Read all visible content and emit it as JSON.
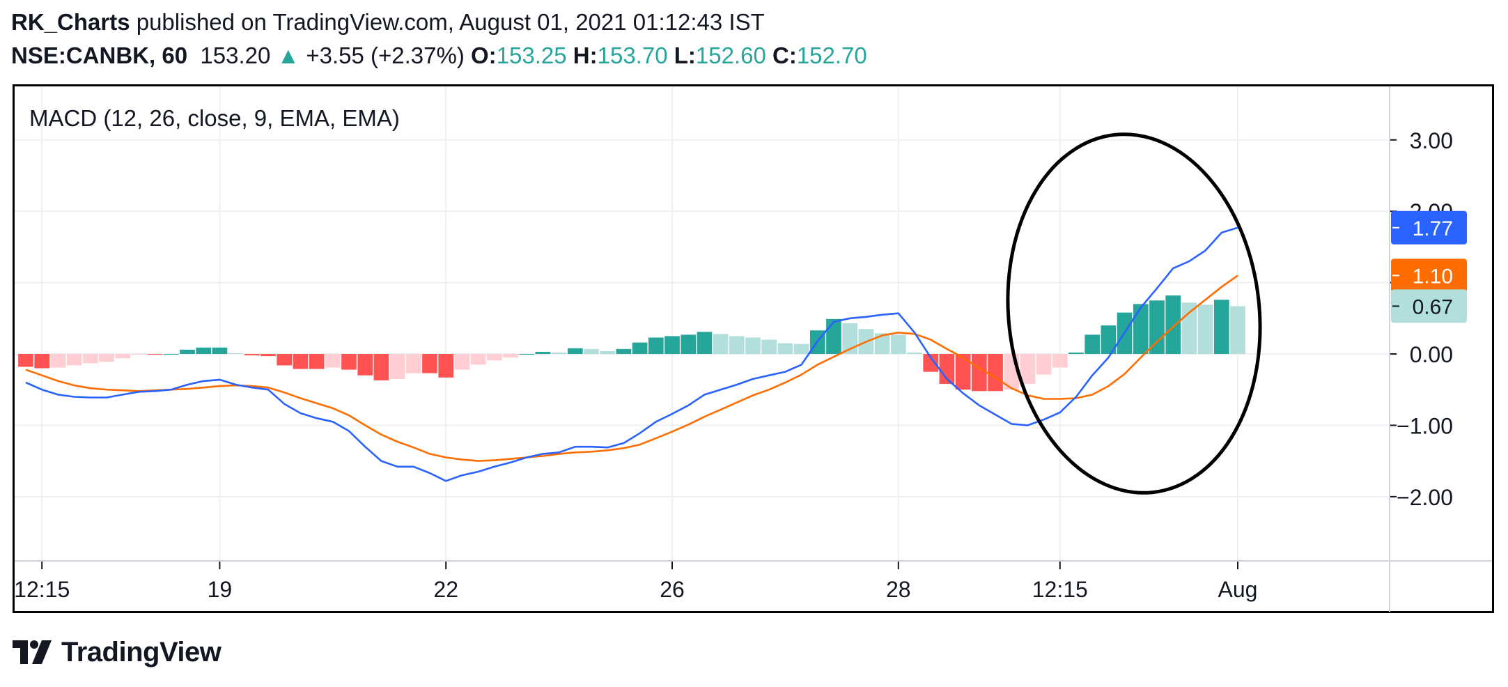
{
  "header": {
    "author": "RK_Charts",
    "published_text": "published on TradingView.com, August 01, 2021 01:12:43 IST",
    "symbol": "NSE:CANBK, 60",
    "price": "153.20",
    "change_arrow": "▲",
    "change": "+3.55 (+2.37%)",
    "open_label": "O:",
    "open_value": "153.25",
    "high_label": "H:",
    "high_value": "153.70",
    "low_label": "L:",
    "low_value": "152.60",
    "close_label": "C:",
    "close_value": "152.70"
  },
  "indicator_title": "MACD (12, 26, close, 9, EMA, EMA)",
  "logo_text": "TradingView",
  "colors": {
    "macd_line": "#2962ff",
    "signal_line": "#ff6d00",
    "hist_pos_strong": "#26a69a",
    "hist_pos_weak": "#b2dfdb",
    "hist_neg_strong": "#ff5252",
    "hist_neg_weak": "#ffcdd2",
    "highlight_ellipse": "#000000",
    "up_arrow": "#26a69a"
  },
  "chart_data": {
    "type": "line",
    "title": "MACD (12, 26, close, 9, EMA, EMA)",
    "x_tick_labels": [
      "12:15",
      "19",
      "22",
      "26",
      "28",
      "12:15",
      "Aug"
    ],
    "x_tick_bars": [
      1,
      12,
      26,
      40,
      54,
      64,
      75
    ],
    "y_tick_labels": [
      "3.00",
      "2.00",
      "1.00",
      "0.00",
      "−1.00",
      "−2.00"
    ],
    "y_tick_values": [
      3,
      2,
      1,
      0,
      -1,
      -2
    ],
    "ylim": [
      -2.9,
      3.75
    ],
    "bar_count": 76,
    "grid": true,
    "series": [
      {
        "name": "MACD",
        "values": [
          -0.4,
          -0.5,
          -0.57,
          -0.6,
          -0.61,
          -0.61,
          -0.57,
          -0.53,
          -0.52,
          -0.5,
          -0.43,
          -0.38,
          -0.36,
          -0.43,
          -0.47,
          -0.5,
          -0.7,
          -0.83,
          -0.9,
          -0.95,
          -1.08,
          -1.3,
          -1.5,
          -1.58,
          -1.58,
          -1.67,
          -1.78,
          -1.7,
          -1.65,
          -1.58,
          -1.52,
          -1.45,
          -1.4,
          -1.38,
          -1.3,
          -1.3,
          -1.31,
          -1.25,
          -1.11,
          -0.95,
          -0.84,
          -0.72,
          -0.57,
          -0.5,
          -0.43,
          -0.35,
          -0.3,
          -0.25,
          -0.15,
          0.18,
          0.45,
          0.5,
          0.52,
          0.55,
          0.57,
          0.3,
          -0.05,
          -0.35,
          -0.55,
          -0.72,
          -0.85,
          -0.98,
          -1.0,
          -0.92,
          -0.82,
          -0.6,
          -0.3,
          -0.05,
          0.3,
          0.65,
          0.92,
          1.2,
          1.3,
          1.45,
          1.7,
          1.77
        ]
      },
      {
        "name": "Signal",
        "values": [
          -0.22,
          -0.3,
          -0.38,
          -0.44,
          -0.48,
          -0.5,
          -0.51,
          -0.52,
          -0.51,
          -0.5,
          -0.49,
          -0.47,
          -0.45,
          -0.44,
          -0.45,
          -0.47,
          -0.54,
          -0.62,
          -0.69,
          -0.76,
          -0.86,
          -1.0,
          -1.13,
          -1.23,
          -1.31,
          -1.4,
          -1.45,
          -1.48,
          -1.5,
          -1.49,
          -1.47,
          -1.45,
          -1.43,
          -1.4,
          -1.38,
          -1.37,
          -1.35,
          -1.32,
          -1.27,
          -1.18,
          -1.09,
          -0.99,
          -0.88,
          -0.78,
          -0.68,
          -0.58,
          -0.5,
          -0.4,
          -0.29,
          -0.15,
          -0.04,
          0.07,
          0.17,
          0.26,
          0.3,
          0.28,
          0.2,
          0.07,
          -0.05,
          -0.2,
          -0.33,
          -0.48,
          -0.58,
          -0.63,
          -0.63,
          -0.62,
          -0.57,
          -0.45,
          -0.28,
          -0.05,
          0.17,
          0.38,
          0.58,
          0.76,
          0.94,
          1.1
        ]
      },
      {
        "name": "Histogram",
        "values": [
          -0.18,
          -0.2,
          -0.19,
          -0.16,
          -0.13,
          -0.11,
          -0.06,
          -0.01,
          -0.01,
          0.0,
          0.06,
          0.09,
          0.09,
          0.01,
          -0.02,
          -0.03,
          -0.16,
          -0.21,
          -0.21,
          -0.19,
          -0.22,
          -0.3,
          -0.37,
          -0.35,
          -0.27,
          -0.27,
          -0.33,
          -0.22,
          -0.15,
          -0.09,
          -0.05,
          0.0,
          0.03,
          0.02,
          0.08,
          0.07,
          0.04,
          0.07,
          0.16,
          0.23,
          0.25,
          0.27,
          0.31,
          0.28,
          0.25,
          0.23,
          0.2,
          0.15,
          0.14,
          0.33,
          0.49,
          0.43,
          0.35,
          0.29,
          0.27,
          0.02,
          -0.25,
          -0.42,
          -0.5,
          -0.52,
          -0.52,
          -0.5,
          -0.42,
          -0.29,
          -0.19,
          0.02,
          0.27,
          0.4,
          0.58,
          0.7,
          0.75,
          0.82,
          0.72,
          0.69,
          0.76,
          0.67
        ]
      }
    ],
    "last_value_labels": [
      {
        "series": "MACD",
        "value": "1.77"
      },
      {
        "series": "Signal",
        "value": "1.10"
      },
      {
        "series": "Histogram",
        "value": "0.67"
      }
    ]
  }
}
